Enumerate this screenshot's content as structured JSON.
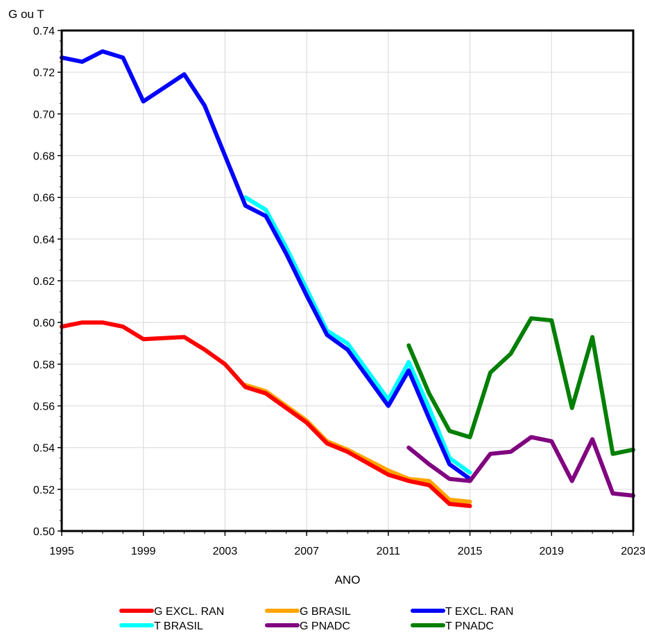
{
  "chart_data": {
    "type": "line",
    "title": "",
    "xlabel": "ANO",
    "ylabel": "G ou T",
    "xlim": [
      1995,
      2023
    ],
    "ylim": [
      0.5,
      0.74
    ],
    "x_ticks": [
      1995,
      1999,
      2003,
      2007,
      2011,
      2015,
      2019,
      2023
    ],
    "y_ticks": [
      0.5,
      0.52,
      0.54,
      0.56,
      0.58,
      0.6,
      0.62,
      0.64,
      0.66,
      0.68,
      0.7,
      0.72,
      0.74
    ],
    "y_tick_labels": [
      "0.50",
      "0.52",
      "0.54",
      "0.56",
      "0.58",
      "0.60",
      "0.62",
      "0.64",
      "0.66",
      "0.68",
      "0.70",
      "0.72",
      "0.74"
    ],
    "grid": true,
    "legend_position": "bottom",
    "series": [
      {
        "name": "G EXCL. RAN",
        "color": "#ff0000",
        "x": [
          1995,
          1996,
          1997,
          1998,
          1999,
          2001,
          2002,
          2003,
          2004,
          2005,
          2006,
          2007,
          2008,
          2009,
          2011,
          2012,
          2013,
          2014,
          2015
        ],
        "y": [
          0.598,
          0.6,
          0.6,
          0.598,
          0.592,
          0.593,
          0.587,
          0.58,
          0.569,
          0.566,
          0.559,
          0.552,
          0.542,
          0.538,
          0.527,
          0.524,
          0.522,
          0.513,
          0.512
        ]
      },
      {
        "name": "G BRASIL",
        "color": "#ffa500",
        "x": [
          2004,
          2005,
          2006,
          2007,
          2008,
          2009,
          2011,
          2012,
          2013,
          2014,
          2015
        ],
        "y": [
          0.57,
          0.567,
          0.56,
          0.553,
          0.543,
          0.539,
          0.529,
          0.525,
          0.524,
          0.515,
          0.514
        ]
      },
      {
        "name": "T EXCL. RAN",
        "color": "#0000ff",
        "x": [
          1995,
          1996,
          1997,
          1998,
          1999,
          2001,
          2002,
          2003,
          2004,
          2005,
          2006,
          2007,
          2008,
          2009,
          2011,
          2012,
          2013,
          2014,
          2015
        ],
        "y": [
          0.727,
          0.725,
          0.73,
          0.727,
          0.706,
          0.719,
          0.704,
          0.68,
          0.656,
          0.651,
          0.633,
          0.613,
          0.594,
          0.587,
          0.56,
          0.577,
          0.554,
          0.532,
          0.525
        ]
      },
      {
        "name": "T BRASIL",
        "color": "#00ffff",
        "x": [
          2004,
          2005,
          2006,
          2007,
          2008,
          2009,
          2011,
          2012,
          2013,
          2014,
          2015
        ],
        "y": [
          0.66,
          0.654,
          0.636,
          0.616,
          0.596,
          0.59,
          0.563,
          0.581,
          0.559,
          0.535,
          0.528
        ]
      },
      {
        "name": "G PNADC",
        "color": "#800080",
        "x": [
          2012,
          2013,
          2014,
          2015,
          2016,
          2017,
          2018,
          2019,
          2020,
          2021,
          2022,
          2023
        ],
        "y": [
          0.54,
          0.532,
          0.525,
          0.524,
          0.537,
          0.538,
          0.545,
          0.543,
          0.524,
          0.544,
          0.518,
          0.517
        ]
      },
      {
        "name": "T PNADC",
        "color": "#007f00",
        "x": [
          2012,
          2013,
          2014,
          2015,
          2016,
          2017,
          2018,
          2019,
          2020,
          2021,
          2022,
          2023
        ],
        "y": [
          0.589,
          0.566,
          0.548,
          0.545,
          0.576,
          0.585,
          0.602,
          0.601,
          0.559,
          0.593,
          0.537,
          0.539
        ]
      }
    ]
  }
}
